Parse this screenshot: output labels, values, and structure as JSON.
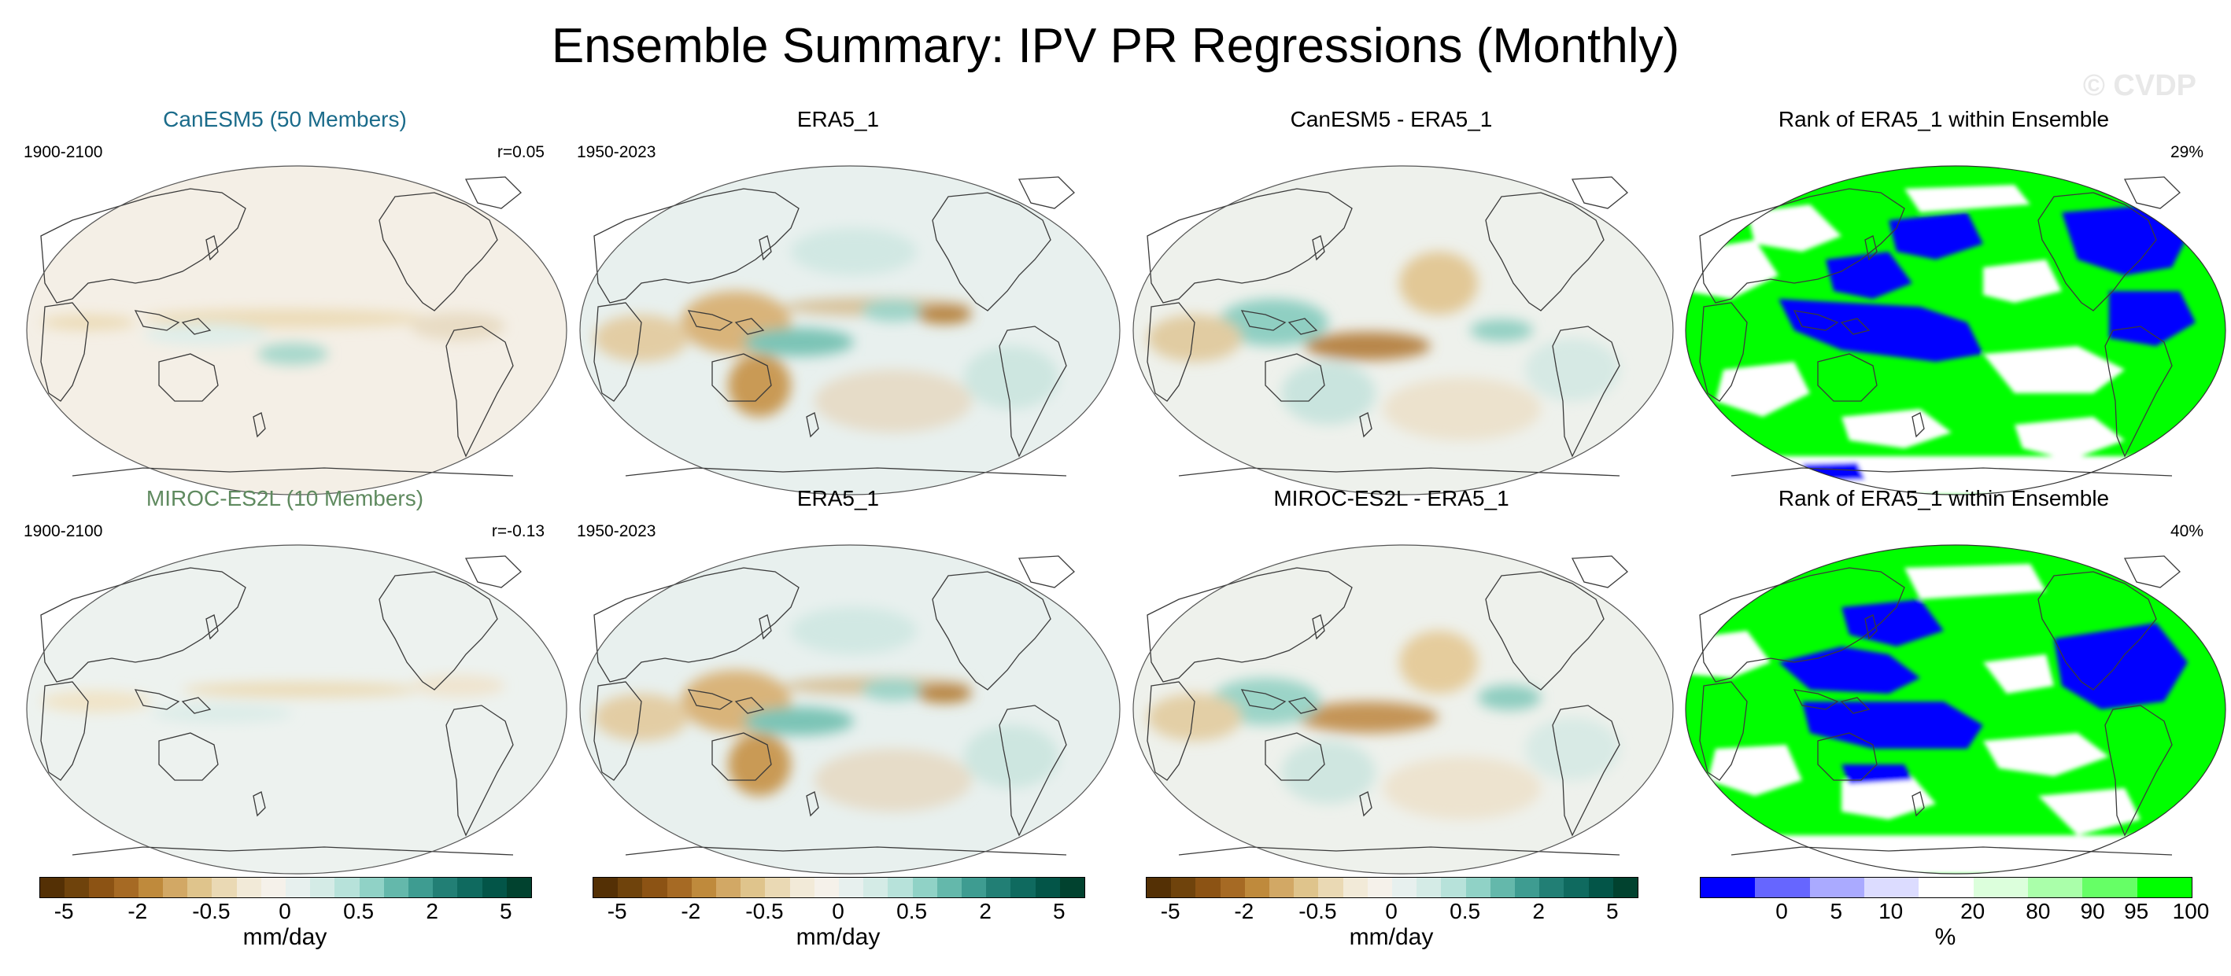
{
  "figure": {
    "title": "Ensemble Summary: IPV PR Regressions (Monthly)",
    "watermark": "© CVDP"
  },
  "rows": [
    {
      "model": {
        "title": "CanESM5 (50 Members)",
        "title_color": "#1a6b8a",
        "period": "1900-2100",
        "corr": "r=0.05"
      },
      "obs": {
        "title": "ERA5_1",
        "period": "1950-2023"
      },
      "diff": {
        "title": "CanESM5 - ERA5_1"
      },
      "rank": {
        "title": "Rank of ERA5_1 within Ensemble",
        "pct": "29%"
      }
    },
    {
      "model": {
        "title": "MIROC-ES2L (10 Members)",
        "title_color": "#5f8a5f",
        "period": "1900-2100",
        "corr": "r=-0.13"
      },
      "obs": {
        "title": "ERA5_1",
        "period": "1950-2023"
      },
      "diff": {
        "title": "MIROC-ES2L - ERA5_1"
      },
      "rank": {
        "title": "Rank of ERA5_1 within Ensemble",
        "pct": "40%"
      }
    }
  ],
  "colorbars": {
    "regression": {
      "unit": "mm/day",
      "tick_labels": [
        "-5",
        "-2",
        "-0.5",
        "0",
        "0.5",
        "2",
        "5"
      ],
      "colors": [
        "#543005",
        "#6f430c",
        "#8c5314",
        "#a66a24",
        "#bf8a3c",
        "#d2a865",
        "#dfc48c",
        "#ead9b4",
        "#f2ead8",
        "#f5f1ea",
        "#e7f0ee",
        "#d4ebe6",
        "#b7e2da",
        "#90d2c6",
        "#64b8ab",
        "#3e9c91",
        "#227f75",
        "#0f6a5f",
        "#035548",
        "#01422f"
      ]
    },
    "rank": {
      "unit": "%",
      "tick_labels": [
        "0",
        "5",
        "10",
        "20",
        "80",
        "90",
        "95",
        "100"
      ],
      "colors": [
        "#0000ff",
        "#6666ff",
        "#aaaaff",
        "#dcdcff",
        "#ffffff",
        "#dcffdc",
        "#aaffaa",
        "#66ff66",
        "#00ff00"
      ]
    }
  }
}
